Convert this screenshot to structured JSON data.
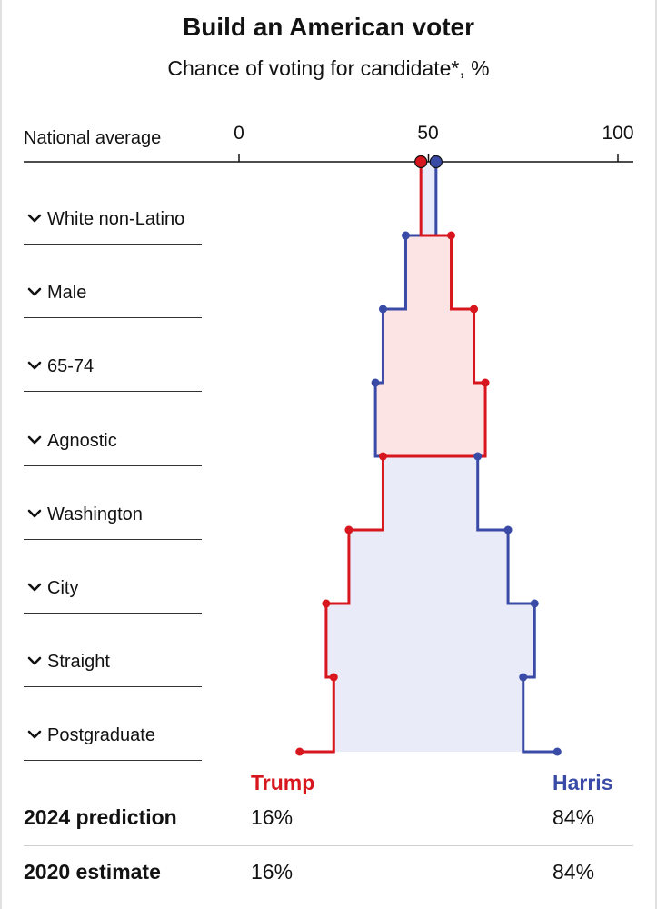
{
  "header": {
    "title": "Build an American voter",
    "subtitle": "Chance of voting for candidate*, %"
  },
  "national_label": "National average",
  "axis_ticks": [
    "0",
    "50",
    "100"
  ],
  "dropdowns": [
    {
      "label": "White non-Latino",
      "icon": "chevron-down-icon"
    },
    {
      "label": "Male",
      "icon": "chevron-down-icon"
    },
    {
      "label": "65-74",
      "icon": "chevron-down-icon"
    },
    {
      "label": "Agnostic",
      "icon": "chevron-down-icon"
    },
    {
      "label": "Washington",
      "icon": "chevron-down-icon"
    },
    {
      "label": "City",
      "icon": "chevron-down-icon"
    },
    {
      "label": "Straight",
      "icon": "chevron-down-icon"
    },
    {
      "label": "Postgraduate",
      "icon": "chevron-down-icon"
    }
  ],
  "candidates": {
    "trump": {
      "name": "Trump",
      "color": "#d7161e"
    },
    "harris": {
      "name": "Harris",
      "color": "#3a4aa7"
    }
  },
  "results": {
    "prediction_2024": {
      "label": "2024 prediction",
      "trump": "16%",
      "harris": "84%"
    },
    "estimate_2020": {
      "label": "2020 estimate",
      "trump": "16%",
      "harris": "84%"
    }
  },
  "chart_data": {
    "type": "line",
    "xlim": [
      0,
      100
    ],
    "ticks": [
      0,
      50,
      100
    ],
    "fill_colors": {
      "trump_lead": "#fde4e4",
      "harris_lead": "#e9ebf8"
    },
    "stages": [
      "National average",
      "White non-Latino",
      "Male",
      "65-74",
      "Agnostic",
      "Washington",
      "City",
      "Straight",
      "Postgraduate"
    ],
    "series": [
      {
        "name": "Trump",
        "color": "#d7161e",
        "values": [
          48,
          56,
          62,
          65,
          38,
          29,
          23,
          25,
          16
        ]
      },
      {
        "name": "Harris",
        "color": "#3a4aa7",
        "values": [
          52,
          44,
          38,
          36,
          63,
          71,
          78,
          75,
          84
        ]
      }
    ]
  }
}
